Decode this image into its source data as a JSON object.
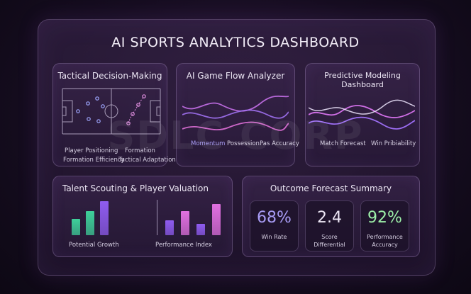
{
  "title": "AI SPORTS ANALYTICS DASHBOARD",
  "watermark": "SDLC CORP",
  "tactical": {
    "title": "Tactical Decision-Making",
    "labels": [
      "Player Positioning",
      "Formation",
      "Formation Efficiency",
      "Tactical Adaptation"
    ]
  },
  "gameflow": {
    "title": "AI Game Flow Analyzer",
    "labels": [
      "Momentum",
      "Possession",
      "Pas Accuracy"
    ]
  },
  "predictive": {
    "title": "Predictive Modeling Dashboard",
    "labels": [
      "Match Forecast",
      "Win Pribiability"
    ]
  },
  "talent": {
    "title": "Talent Scouting & Player Valuation",
    "labels": [
      "Potential Growth",
      "Performance Index"
    ],
    "growth_bars": [
      0.45,
      0.67,
      0.95
    ],
    "performance_bars": [
      0.42,
      0.67,
      0.32,
      0.87
    ],
    "colors": {
      "green": "#3ecf9a",
      "purple": "#8f5cf0",
      "pink": "#e070e0"
    }
  },
  "forecast": {
    "title": "Outcome Forecast Summary",
    "stats": [
      {
        "value": "68%",
        "caption": "Win Rate",
        "color": "#a89cf5"
      },
      {
        "value": "2.4",
        "caption": "Score Differential",
        "color": "#ece6f4"
      },
      {
        "value": "92%",
        "caption": "Performance Accuracy",
        "color": "#9df0a8"
      }
    ]
  }
}
